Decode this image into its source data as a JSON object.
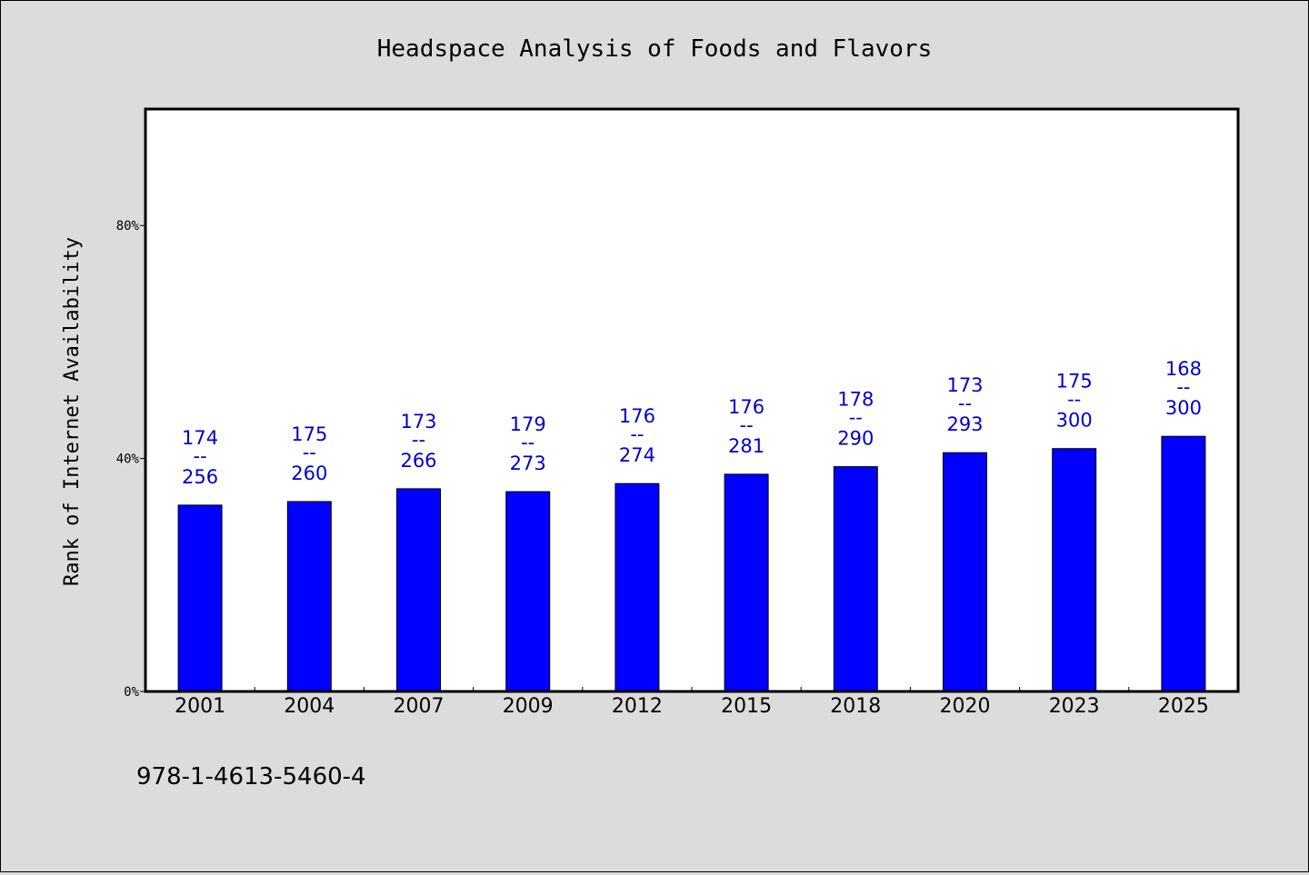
{
  "chart_data": {
    "type": "bar",
    "title": "Headspace Analysis of Foods and Flavors",
    "xlabel": "",
    "ylabel": "Rank of Internet Availability",
    "categories": [
      "2001",
      "2004",
      "2007",
      "2009",
      "2012",
      "2015",
      "2018",
      "2020",
      "2023",
      "2025"
    ],
    "values": [
      32,
      32.6,
      34.8,
      34.3,
      35.7,
      37.3,
      38.6,
      41,
      41.7,
      43.8
    ],
    "value_unit": "%",
    "data_labels": [
      {
        "top": "174",
        "mid": "--",
        "bottom": "256"
      },
      {
        "top": "175",
        "mid": "--",
        "bottom": "260"
      },
      {
        "top": "173",
        "mid": "--",
        "bottom": "266"
      },
      {
        "top": "179",
        "mid": "--",
        "bottom": "273"
      },
      {
        "top": "176",
        "mid": "--",
        "bottom": "274"
      },
      {
        "top": "176",
        "mid": "--",
        "bottom": "281"
      },
      {
        "top": "178",
        "mid": "--",
        "bottom": "290"
      },
      {
        "top": "173",
        "mid": "--",
        "bottom": "293"
      },
      {
        "top": "175",
        "mid": "--",
        "bottom": "300"
      },
      {
        "top": "168",
        "mid": "--",
        "bottom": "300"
      }
    ],
    "ylim": [
      0,
      100
    ],
    "yticks": [
      {
        "value": 0,
        "label": "0%"
      },
      {
        "value": 40,
        "label": "40%"
      },
      {
        "value": 80,
        "label": "80%"
      }
    ],
    "grid": false,
    "legend": "none",
    "colors": {
      "bar": "#0000ff",
      "label": "#0000cc",
      "background": "#dcdcdc",
      "plot_background": "#ffffff"
    }
  },
  "footer_text": "978-1-4613-5460-4"
}
